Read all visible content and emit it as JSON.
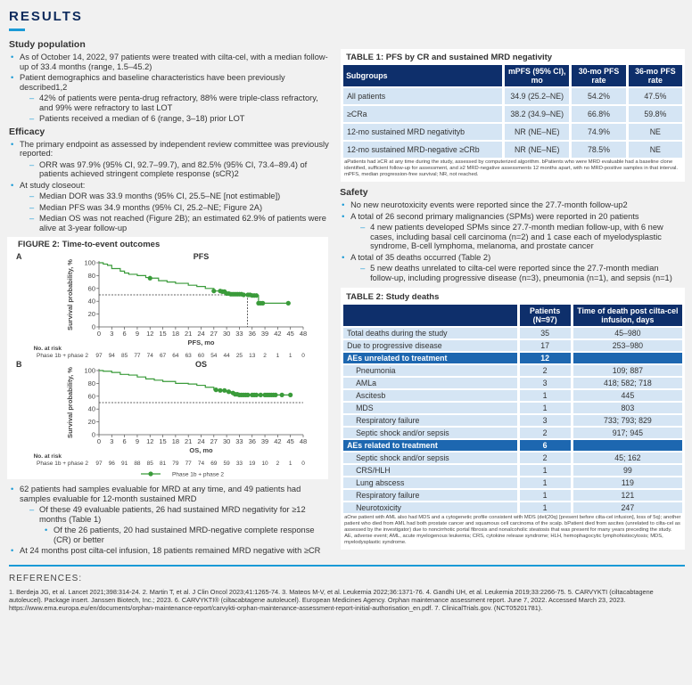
{
  "header": {
    "title": "RESULTS"
  },
  "study_population": {
    "heading": "Study population",
    "items": [
      {
        "level": 1,
        "text": "As of October 14, 2022, 97 patients were treated with cilta-cel, with a median follow-up of 33.4 months (range, 1.5–45.2)"
      },
      {
        "level": 1,
        "text": "Patient demographics and baseline characteristics have been previously described1,2"
      },
      {
        "level": 2,
        "text": "42% of patients were penta-drug refractory, 88% were triple-class refractory, and 99% were refractory to last LOT"
      },
      {
        "level": 2,
        "text": "Patients received a median of 6 (range, 3–18) prior LOT"
      }
    ]
  },
  "efficacy": {
    "heading": "Efficacy",
    "items": [
      {
        "level": 1,
        "text": "The primary endpoint as assessed by independent review committee was previously reported:"
      },
      {
        "level": 2,
        "text": "ORR was 97.9% (95% CI, 92.7–99.7), and 82.5% (95% CI, 73.4–89.4) of patients achieved stringent complete response (sCR)2"
      },
      {
        "level": 1,
        "text": "At study closeout:"
      },
      {
        "level": 2,
        "text": "Median DOR was 33.9 months (95% CI, 25.5–NE [not estimable])"
      },
      {
        "level": 2,
        "text": "Median PFS was 34.9 months (95% CI, 25.2–NE; Figure 2A)"
      },
      {
        "level": 2,
        "text": "Median OS was not reached (Figure 2B); an estimated 62.9% of patients were alive at 3-year follow-up"
      }
    ]
  },
  "mrd": {
    "items": [
      {
        "level": 1,
        "text": "62 patients had samples evaluable for MRD at any time, and 49 patients had samples evaluable for 12-month sustained MRD"
      },
      {
        "level": 2,
        "text": "Of these 49 evaluable patients, 26 had sustained MRD negativity for ≥12 months (Table 1)"
      },
      {
        "level": 3,
        "text": "Of the 26 patients, 20 had sustained MRD-negative complete response (CR) or better"
      },
      {
        "level": 1,
        "text": "At 24 months post cilta-cel infusion, 18 patients remained MRD negative with ≥CR"
      }
    ]
  },
  "figure2": {
    "title": "FIGURE 2: Time-to-event outcomes",
    "at_risk_label": "No. at risk",
    "group_label": "Phase 1b + phase 2",
    "legend": "Phase 1b + phase 2"
  },
  "chart_data": [
    {
      "type": "line",
      "panel": "A",
      "title": "PFS",
      "xlabel": "PFS, mo",
      "ylabel": "Survival probability, %",
      "xlim": [
        0,
        48
      ],
      "ylim": [
        0,
        100
      ],
      "xticks": [
        0,
        3,
        6,
        9,
        12,
        15,
        18,
        21,
        24,
        27,
        30,
        33,
        36,
        39,
        42,
        45,
        48
      ],
      "yticks": [
        0,
        20,
        40,
        60,
        80,
        100
      ],
      "color": "#3a9b3a",
      "median_line": 50,
      "median_x": 34.9,
      "series": [
        {
          "name": "Phase 1b + phase 2",
          "x": [
            0,
            1,
            2,
            3,
            5,
            6,
            7,
            9,
            11,
            12,
            14,
            16,
            18,
            21,
            23,
            25,
            27,
            29,
            30,
            31,
            34,
            36,
            37.5,
            45
          ],
          "y": [
            100,
            98,
            96,
            91,
            87,
            84,
            82,
            80,
            77,
            76,
            72,
            70,
            68,
            65,
            63,
            60,
            56,
            55,
            52,
            51,
            50,
            49,
            37,
            37
          ],
          "censored_x": [
            12,
            27,
            28.5,
            29,
            29.5,
            30,
            30.5,
            31,
            31.5,
            32,
            32.5,
            33,
            33.5,
            34,
            35,
            35.5,
            36,
            36.5,
            37,
            37.5,
            38,
            38.5,
            44.5
          ]
        }
      ],
      "at_risk": [
        97,
        94,
        85,
        77,
        74,
        67,
        64,
        63,
        60,
        54,
        44,
        25,
        13,
        2,
        1,
        1,
        0
      ]
    },
    {
      "type": "line",
      "panel": "B",
      "title": "OS",
      "xlabel": "OS, mo",
      "ylabel": "Survival probability, %",
      "xlim": [
        0,
        48
      ],
      "ylim": [
        0,
        100
      ],
      "xticks": [
        0,
        3,
        6,
        9,
        12,
        15,
        18,
        21,
        24,
        27,
        30,
        33,
        36,
        39,
        42,
        45,
        48
      ],
      "yticks": [
        0,
        20,
        40,
        60,
        80,
        100
      ],
      "color": "#3a9b3a",
      "median_line": 50,
      "series": [
        {
          "name": "Phase 1b + phase 2",
          "x": [
            0,
            1,
            3,
            5,
            7,
            9,
            11,
            13,
            15,
            18,
            21,
            23,
            25,
            27,
            28,
            30,
            31,
            32,
            33,
            45
          ],
          "y": [
            100,
            99,
            97,
            94,
            93,
            90,
            87,
            85,
            83,
            80,
            79,
            77,
            74,
            70,
            69,
            67,
            65,
            63,
            62,
            62
          ],
          "censored_x": [
            27.5,
            28.5,
            29.5,
            30.5,
            31.5,
            32,
            32.5,
            33,
            33.5,
            34,
            34.5,
            35,
            36,
            36.5,
            37,
            38,
            39,
            39.5,
            40,
            40.5,
            41,
            41.5,
            43,
            45
          ]
        }
      ],
      "at_risk": [
        97,
        96,
        91,
        88,
        85,
        81,
        79,
        77,
        74,
        69,
        59,
        33,
        19,
        10,
        2,
        1,
        0
      ]
    }
  ],
  "table1": {
    "title": "TABLE 1: PFS by CR and sustained MRD negativity",
    "headers": [
      "Subgroups",
      "mPFS (95% CI), mo",
      "30-mo PFS rate",
      "36-mo PFS rate"
    ],
    "rows": [
      [
        "All patients",
        "34.9 (25.2–NE)",
        "54.2%",
        "47.5%"
      ],
      [
        "≥CRa",
        "38.2 (34.9–NE)",
        "66.8%",
        "59.8%"
      ],
      [
        "12-mo sustained MRD negativityb",
        "NR (NE–NE)",
        "74.9%",
        "NE"
      ],
      [
        "12-mo sustained MRD-negative ≥CRb",
        "NR (NE–NE)",
        "78.5%",
        "NE"
      ]
    ],
    "footnote": "aPatients had ≥CR at any time during the study, assessed by computerized algorithm. bPatients who were MRD evaluable had a baseline clone identified, sufficient follow-up for assessment, and ≥2 MRD-negative assessments 12 months apart, with no MRD-positive samples in that interval. mPFS, median progression-free survival; NR, not reached."
  },
  "safety": {
    "heading": "Safety",
    "items": [
      {
        "level": 1,
        "text": "No new neurotoxicity events were reported since the 27.7-month follow-up2"
      },
      {
        "level": 1,
        "text": "A total of 26 second primary malignancies (SPMs) were reported in 20 patients"
      },
      {
        "level": 2,
        "text": "4 new patients developed SPMs since 27.7-month median follow-up, with 6 new cases, including basal cell carcinoma (n=2) and 1 case each of myelodysplastic syndrome, B-cell lymphoma, melanoma, and prostate cancer"
      },
      {
        "level": 1,
        "text": "A total of 35 deaths occurred (Table 2)"
      },
      {
        "level": 2,
        "text": "5 new deaths unrelated to cilta-cel were reported since the 27.7-month median follow-up, including progressive disease (n=3), pneumonia (n=1), and sepsis (n=1)"
      }
    ]
  },
  "table2": {
    "title": "TABLE 2: Study deaths",
    "headers": [
      "",
      "Patients (N=97)",
      "Time of death post cilta-cel infusion, days"
    ],
    "rows": [
      {
        "type": "row",
        "cells": [
          "Total deaths during the study",
          "35",
          "45–980"
        ]
      },
      {
        "type": "row",
        "cells": [
          "Due to progressive disease",
          "17",
          "253–980"
        ]
      },
      {
        "type": "section",
        "cells": [
          "AEs unrelated to treatment",
          "12",
          ""
        ]
      },
      {
        "type": "sub",
        "cells": [
          "Pneumonia",
          "2",
          "109; 887"
        ]
      },
      {
        "type": "sub",
        "cells": [
          "AMLa",
          "3",
          "418; 582; 718"
        ]
      },
      {
        "type": "sub",
        "cells": [
          "Ascitesb",
          "1",
          "445"
        ]
      },
      {
        "type": "sub",
        "cells": [
          "MDS",
          "1",
          "803"
        ]
      },
      {
        "type": "sub",
        "cells": [
          "Respiratory failure",
          "3",
          "733; 793; 829"
        ]
      },
      {
        "type": "sub",
        "cells": [
          "Septic shock and/or sepsis",
          "2",
          "917; 945"
        ]
      },
      {
        "type": "section",
        "cells": [
          "AEs related to treatment",
          "6",
          ""
        ]
      },
      {
        "type": "sub",
        "cells": [
          "Septic shock and/or sepsis",
          "2",
          "45; 162"
        ]
      },
      {
        "type": "sub",
        "cells": [
          "CRS/HLH",
          "1",
          "99"
        ]
      },
      {
        "type": "sub",
        "cells": [
          "Lung abscess",
          "1",
          "119"
        ]
      },
      {
        "type": "sub",
        "cells": [
          "Respiratory failure",
          "1",
          "121"
        ]
      },
      {
        "type": "sub",
        "cells": [
          "Neurotoxicity",
          "1",
          "247"
        ]
      }
    ],
    "footnote": "aOne patient with AML also had MDS and a cytogenetic profile consistent with MDS (del(20q) [present before cilta-cel infusion], loss of 5q); another patient who died from AML had both prostate cancer and squamous cell carcinoma of the scalp. bPatient died from ascites (unrelated to cilta-cel as assessed by the investigator) due to noncirrhotic portal fibrosis and nonalcoholic steatosis that was present for many years preceding the study. AE, adverse event; AML, acute myelogenous leukemia; CRS, cytokine release syndrome; HLH, hemophagocytic lymphohistiocytosis; MDS, myelodysplastic syndrome."
  },
  "references": {
    "title": "REFERENCES:",
    "text": "1. Berdeja JG, et al. Lancet 2021;398:314-24. 2. Martin T, et al. J Clin Oncol 2023;41:1265-74. 3. Mateos M-V, et al. Leukemia 2022;36:1371-76. 4. Gandhi UH, et al. Leukemia 2019;33:2266-75. 5. CARVYKTI (ciltacabtagene autoleucel). Package insert. Janssen Biotech, Inc.; 2023. 6. CARVYKTI® (ciltacabtagene autoleucel). European Medicines Agency. Orphan maintenance assessment report. June 7, 2022. Accessed March 23, 2023. https://www.ema.europa.eu/en/documents/orphan-maintenance-report/carvykti-orphan-maintenance-assessment-report-initial-authorisation_en.pdf. 7. ClinicalTrials.gov. (NCT05201781)."
  },
  "colors": {
    "navy": "#0e2f6b",
    "accent": "#1a9ad6",
    "row": "#d5e5f4",
    "section": "#1d67b0",
    "curve": "#3a9b3a"
  }
}
